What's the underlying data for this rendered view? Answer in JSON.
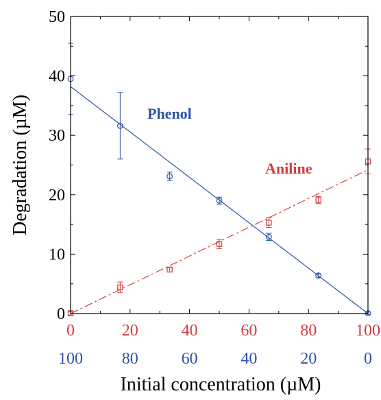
{
  "chart_data": {
    "type": "scatter",
    "title": "",
    "xlabel": "Initial concentration (µM)",
    "ylabel": "Degradation (µM)",
    "ylim": [
      0,
      50
    ],
    "xlim": [
      0,
      100
    ],
    "y_ticks": [
      "0",
      "10",
      "20",
      "30",
      "40",
      "50"
    ],
    "x_ticks_aniline": [
      "0",
      "20",
      "40",
      "60",
      "80",
      "100"
    ],
    "x_ticks_phenol": [
      "100",
      "80",
      "60",
      "40",
      "20",
      "0"
    ],
    "grid": false,
    "colors": {
      "phenol": "#2a52a8",
      "aniline": "#d23c3c",
      "axis": "#000000"
    },
    "series": [
      {
        "name": "Phenol",
        "color": "#2a52a8",
        "marker": "circle",
        "x_axis": "x_ticks_phenol",
        "fit_line": "solid",
        "fit": {
          "x": [
            0,
            100
          ],
          "y": [
            38.2,
            0
          ]
        },
        "points": [
          {
            "x": 0,
            "y": 39.5,
            "err": 6
          },
          {
            "x": 16.67,
            "y": 31.6,
            "err": 5.6
          },
          {
            "x": 33.33,
            "y": 23.1,
            "err": 0.7
          },
          {
            "x": 50,
            "y": 19.0,
            "err": 0.6
          },
          {
            "x": 66.67,
            "y": 12.9,
            "err": 0.6
          },
          {
            "x": 83.33,
            "y": 6.4,
            "err": 0.3
          },
          {
            "x": 100,
            "y": 0.05,
            "err": 0.2
          }
        ]
      },
      {
        "name": "Aniline",
        "color": "#d23c3c",
        "marker": "square",
        "x_axis": "x_ticks_aniline",
        "fit_line": "dashdot",
        "fit": {
          "x": [
            0,
            100
          ],
          "y": [
            0,
            24.2
          ]
        },
        "points": [
          {
            "x": 0,
            "y": 0.05,
            "err": 0.3
          },
          {
            "x": 16.67,
            "y": 4.4,
            "err": 0.9
          },
          {
            "x": 33.33,
            "y": 7.4,
            "err": 0.4
          },
          {
            "x": 50,
            "y": 11.7,
            "err": 0.8
          },
          {
            "x": 66.67,
            "y": 15.3,
            "err": 0.8
          },
          {
            "x": 83.33,
            "y": 19.1,
            "err": 0.6
          },
          {
            "x": 100,
            "y": 25.6,
            "err": 2.1
          }
        ]
      }
    ]
  }
}
